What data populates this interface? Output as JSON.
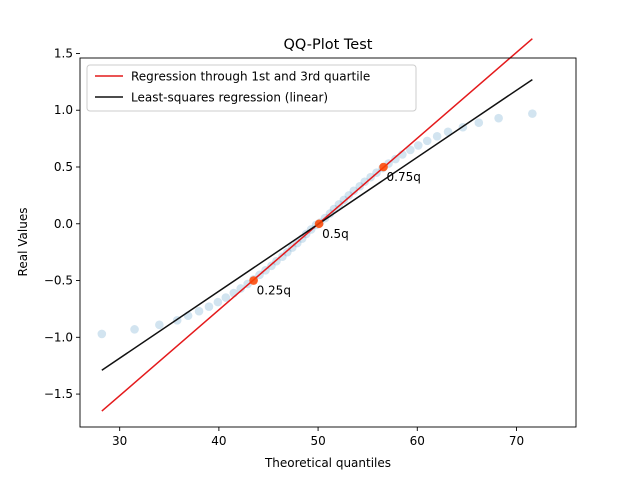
{
  "chart_data": {
    "type": "scatter",
    "title": "QQ-Plot Test",
    "xlabel": "Theoretical quantiles",
    "ylabel": "Real Values",
    "xlim": [
      26,
      76
    ],
    "ylim": [
      -1.79,
      1.46
    ],
    "xticks": [
      30,
      40,
      50,
      60,
      70
    ],
    "yticks": [
      -1.5,
      -1.0,
      -0.5,
      0.0,
      0.5,
      1.0,
      1.5
    ],
    "xtick_labels": [
      "30",
      "40",
      "50",
      "60",
      "70"
    ],
    "ytick_labels": [
      "−1.5",
      "−1.0",
      "−0.5",
      "0.0",
      "0.5",
      "1.0",
      "1.5"
    ],
    "grid": false,
    "legend_position": "top-left",
    "points": {
      "x": [
        28.2,
        31.5,
        34.0,
        35.8,
        36.9,
        38.0,
        39.0,
        39.9,
        40.7,
        41.5,
        42.2,
        42.9,
        43.5,
        44.1,
        44.7,
        45.3,
        45.8,
        46.4,
        46.9,
        47.4,
        47.9,
        48.4,
        48.8,
        49.3,
        49.8,
        50.2,
        50.7,
        51.2,
        51.6,
        52.1,
        52.6,
        53.1,
        53.6,
        54.2,
        54.7,
        55.3,
        55.9,
        56.5,
        57.1,
        57.8,
        58.5,
        59.3,
        60.1,
        61.0,
        62.0,
        63.1,
        64.6,
        66.2,
        68.2,
        71.6
      ],
      "y": [
        -0.97,
        -0.93,
        -0.89,
        -0.85,
        -0.81,
        -0.77,
        -0.73,
        -0.69,
        -0.65,
        -0.61,
        -0.57,
        -0.53,
        -0.49,
        -0.45,
        -0.41,
        -0.37,
        -0.33,
        -0.29,
        -0.25,
        -0.21,
        -0.17,
        -0.13,
        -0.09,
        -0.05,
        -0.01,
        0.01,
        0.05,
        0.09,
        0.13,
        0.17,
        0.21,
        0.25,
        0.29,
        0.33,
        0.37,
        0.41,
        0.45,
        0.49,
        0.53,
        0.57,
        0.61,
        0.65,
        0.69,
        0.73,
        0.77,
        0.81,
        0.85,
        0.89,
        0.93,
        0.97
      ],
      "color": "#1f77b4",
      "alpha": 0.2
    },
    "quantile_points": [
      {
        "x": 43.5,
        "y": -0.5,
        "label": "0.25q"
      },
      {
        "x": 50.1,
        "y": 0.0,
        "label": "0.5q"
      },
      {
        "x": 56.6,
        "y": 0.5,
        "label": "0.75q"
      }
    ],
    "quantile_color": "#ff4500",
    "series": [
      {
        "name": "Regression through 1st and 3rd quartile",
        "x": [
          28.2,
          71.6
        ],
        "y": [
          -1.65,
          1.63
        ],
        "color": "#e41a1c"
      },
      {
        "name": "Least-squares regression (linear)",
        "x": [
          28.2,
          71.6
        ],
        "y": [
          -1.29,
          1.27
        ],
        "color": "#111111"
      }
    ]
  }
}
